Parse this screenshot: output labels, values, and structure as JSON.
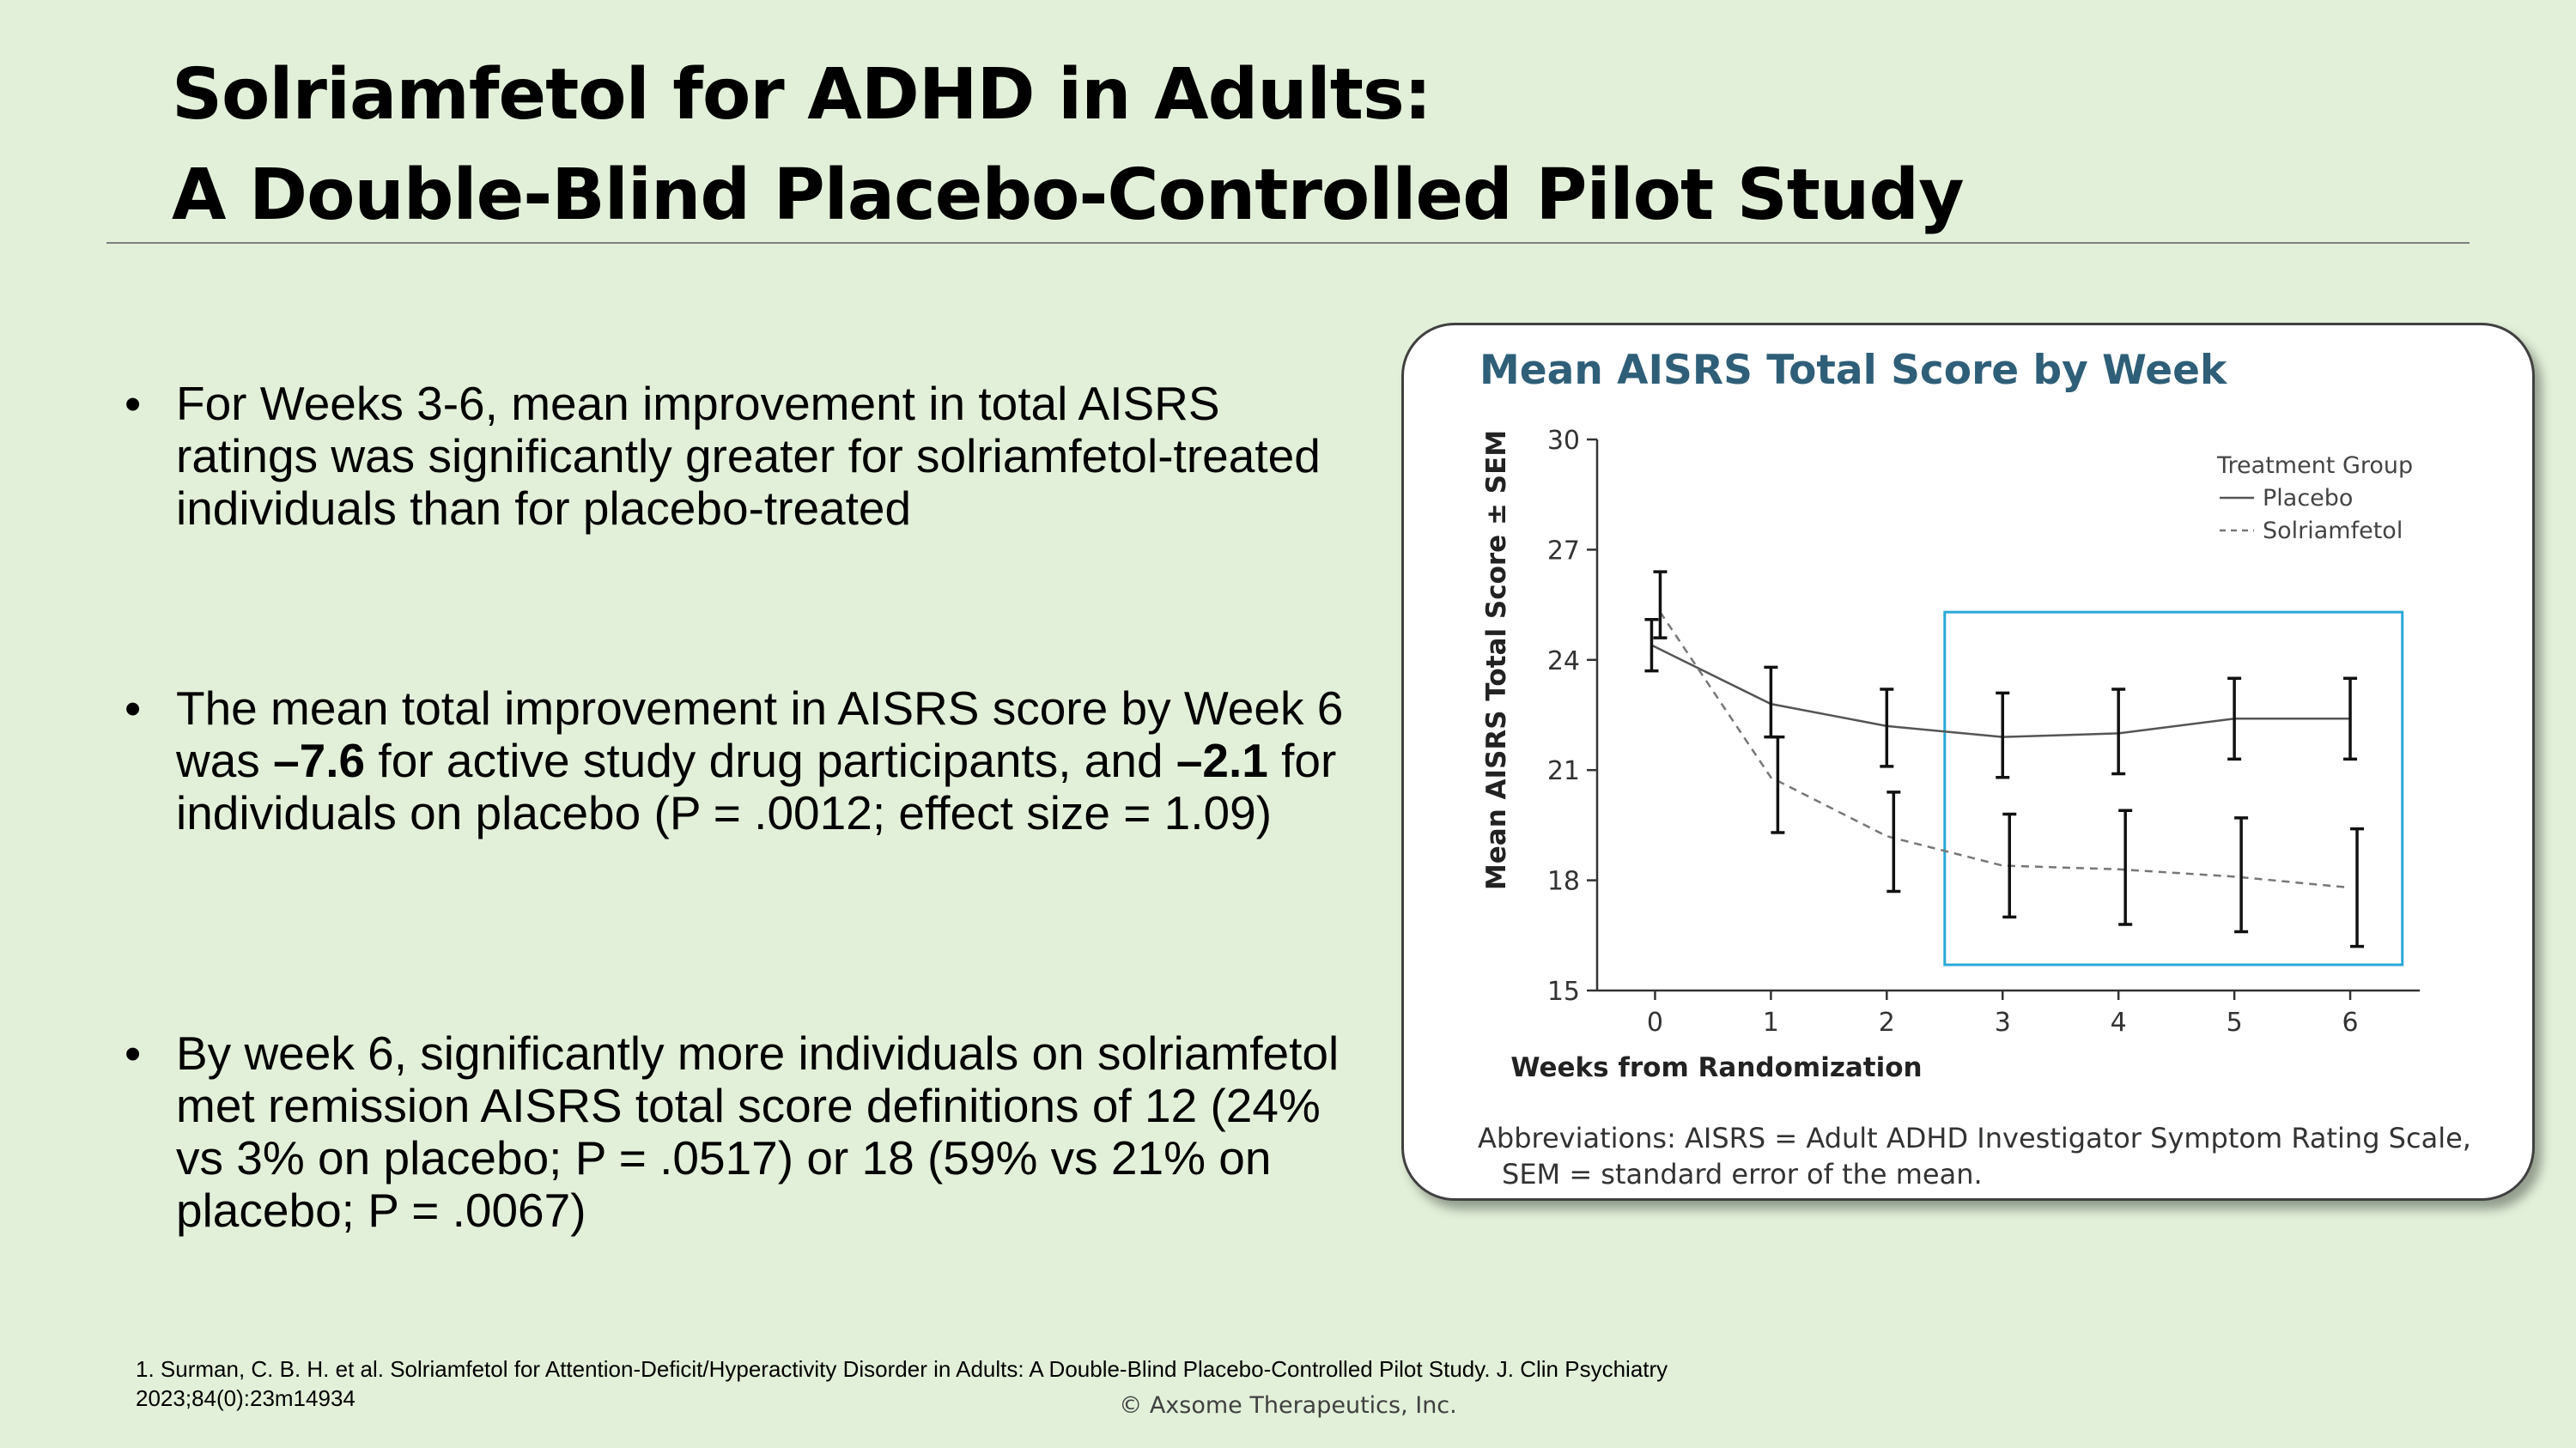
{
  "slide": {
    "title_line1": "Solriamfetol for ADHD in Adults:",
    "title_line2": "A Double-Blind Placebo-Controlled Pilot Study",
    "bullet_char": "•",
    "bullets": [
      {
        "text": "For Weeks 3-6, mean improvement in total AISRS ratings was significantly greater for solriamfetol-treated individuals than for placebo-treated"
      },
      {
        "pre": "The mean total improvement in AISRS score by Week 6 was ",
        "bold1": "–7.6",
        "mid": " for active study drug participants, and ",
        "bold2": "–2.1",
        "post": " for individuals on placebo (P = .0012; effect size = 1.09)"
      },
      {
        "text": "By week 6, significantly more individuals on solriamfetol met remission AISRS total score definitions of 12 (24% vs 3% on placebo; P = .0517) or 18 (59% vs 21% on placebo; P = .0067)"
      }
    ],
    "reference_line1": "1. Surman, C. B. H. et al. Solriamfetol for Attention-Deficit/Hyperactivity Disorder in Adults: A Double-Blind Placebo-Controlled Pilot Study. J. Clin Psychiatry",
    "reference_line2": "2023;84(0):23m14934",
    "copyright": "© Axsome Therapeutics, Inc."
  },
  "chart_data": {
    "type": "line",
    "title": "Mean AISRS Total Score by Week",
    "xlabel": "Weeks from Randomization",
    "ylabel": "Mean AISRS Total Score ± SEM",
    "x": [
      0,
      1,
      2,
      3,
      4,
      5,
      6
    ],
    "xlim": [
      -0.5,
      6.6
    ],
    "ylim": [
      15,
      30
    ],
    "yticks": [
      15,
      18,
      21,
      24,
      27,
      30
    ],
    "legend_title": "Treatment Group",
    "legend_position": "top-right",
    "grid": false,
    "highlight_box": {
      "x_range": [
        2.5,
        6.45
      ],
      "y_range": [
        15.7,
        25.3
      ],
      "color": "#29a8d8"
    },
    "series": [
      {
        "name": "Placebo",
        "style": "solid",
        "color": "#555555",
        "values": [
          24.4,
          22.8,
          22.2,
          21.9,
          22.0,
          22.4,
          22.4
        ],
        "err_low": [
          23.7,
          21.9,
          21.1,
          20.8,
          20.9,
          21.3,
          21.3
        ],
        "err_high": [
          25.1,
          23.8,
          23.2,
          23.1,
          23.2,
          23.5,
          23.5
        ]
      },
      {
        "name": "Solriamfetol",
        "style": "dashed",
        "color": "#777777",
        "values": [
          25.3,
          20.8,
          19.2,
          18.4,
          18.3,
          18.1,
          17.8
        ],
        "err_low": [
          24.6,
          19.3,
          17.7,
          17.0,
          16.8,
          16.6,
          16.2
        ],
        "err_high": [
          26.4,
          21.9,
          20.4,
          19.8,
          19.9,
          19.7,
          19.4
        ]
      }
    ],
    "abbreviations_line1": "Abbreviations: AISRS = Adult ADHD Investigator Symptom Rating Scale,",
    "abbreviations_line2": "SEM = standard error of the mean."
  }
}
